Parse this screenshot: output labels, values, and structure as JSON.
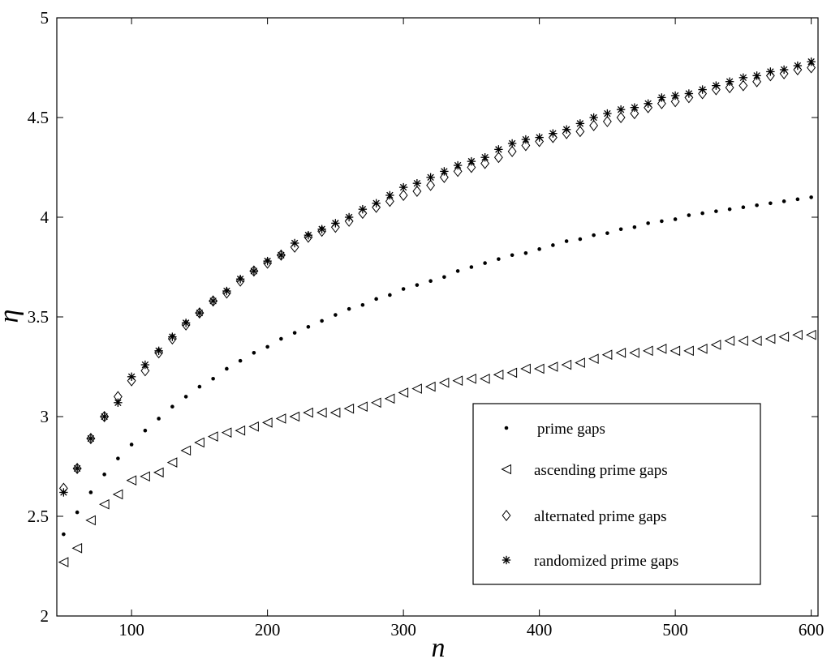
{
  "chart_data": {
    "type": "scatter",
    "title": "",
    "xlabel": "n",
    "ylabel": "η",
    "xlim": [
      45,
      605
    ],
    "ylim": [
      2,
      5
    ],
    "x_ticks": [
      "100",
      "200",
      "300",
      "400",
      "500",
      "600"
    ],
    "y_ticks": [
      "2",
      "2.5",
      "3",
      "3.5",
      "4",
      "4.5",
      "5"
    ],
    "grid": false,
    "legend_position": "bottom-right",
    "x": [
      50,
      60,
      70,
      80,
      90,
      100,
      110,
      120,
      130,
      140,
      150,
      160,
      170,
      180,
      190,
      200,
      210,
      220,
      230,
      240,
      250,
      260,
      270,
      280,
      290,
      300,
      310,
      320,
      330,
      340,
      350,
      360,
      370,
      380,
      390,
      400,
      410,
      420,
      430,
      440,
      450,
      460,
      470,
      480,
      490,
      500,
      510,
      520,
      530,
      540,
      550,
      560,
      570,
      580,
      590,
      600
    ],
    "series": [
      {
        "name": "prime gaps",
        "marker": "dot",
        "values": [
          2.41,
          2.52,
          2.62,
          2.71,
          2.79,
          2.86,
          2.93,
          2.99,
          3.05,
          3.1,
          3.15,
          3.19,
          3.24,
          3.28,
          3.32,
          3.35,
          3.39,
          3.42,
          3.45,
          3.48,
          3.51,
          3.54,
          3.56,
          3.59,
          3.61,
          3.64,
          3.66,
          3.68,
          3.7,
          3.73,
          3.75,
          3.77,
          3.79,
          3.81,
          3.82,
          3.84,
          3.86,
          3.88,
          3.89,
          3.91,
          3.92,
          3.94,
          3.95,
          3.97,
          3.98,
          3.99,
          4.01,
          4.02,
          4.03,
          4.04,
          4.05,
          4.06,
          4.07,
          4.08,
          4.09,
          4.1
        ]
      },
      {
        "name": "ascending prime gaps",
        "marker": "triangle-left",
        "values": [
          2.27,
          2.34,
          2.48,
          2.56,
          2.61,
          2.68,
          2.7,
          2.72,
          2.77,
          2.83,
          2.87,
          2.9,
          2.92,
          2.93,
          2.95,
          2.97,
          2.99,
          3.0,
          3.02,
          3.02,
          3.02,
          3.04,
          3.05,
          3.07,
          3.09,
          3.12,
          3.14,
          3.15,
          3.17,
          3.18,
          3.19,
          3.19,
          3.21,
          3.22,
          3.24,
          3.24,
          3.25,
          3.26,
          3.27,
          3.29,
          3.31,
          3.32,
          3.32,
          3.33,
          3.34,
          3.33,
          3.33,
          3.34,
          3.36,
          3.38,
          3.38,
          3.38,
          3.39,
          3.4,
          3.41,
          3.41
        ]
      },
      {
        "name": "alternated prime gaps",
        "marker": "diamond",
        "values": [
          2.64,
          2.74,
          2.89,
          3.0,
          3.1,
          3.18,
          3.23,
          3.32,
          3.39,
          3.46,
          3.52,
          3.58,
          3.62,
          3.68,
          3.73,
          3.77,
          3.81,
          3.85,
          3.9,
          3.93,
          3.95,
          3.98,
          4.02,
          4.05,
          4.08,
          4.11,
          4.13,
          4.16,
          4.2,
          4.23,
          4.25,
          4.27,
          4.3,
          4.33,
          4.36,
          4.38,
          4.4,
          4.42,
          4.43,
          4.46,
          4.48,
          4.5,
          4.52,
          4.55,
          4.57,
          4.58,
          4.6,
          4.62,
          4.64,
          4.65,
          4.66,
          4.68,
          4.71,
          4.72,
          4.74,
          4.75
        ]
      },
      {
        "name": "randomized prime gaps",
        "marker": "star",
        "values": [
          2.62,
          2.74,
          2.89,
          3.0,
          3.07,
          3.2,
          3.26,
          3.33,
          3.4,
          3.47,
          3.52,
          3.58,
          3.63,
          3.69,
          3.73,
          3.78,
          3.81,
          3.87,
          3.91,
          3.94,
          3.97,
          4.0,
          4.04,
          4.07,
          4.11,
          4.15,
          4.17,
          4.2,
          4.23,
          4.26,
          4.28,
          4.3,
          4.34,
          4.37,
          4.39,
          4.4,
          4.42,
          4.44,
          4.47,
          4.5,
          4.52,
          4.54,
          4.55,
          4.57,
          4.6,
          4.61,
          4.62,
          4.64,
          4.66,
          4.68,
          4.7,
          4.71,
          4.73,
          4.74,
          4.76,
          4.78
        ]
      }
    ]
  }
}
